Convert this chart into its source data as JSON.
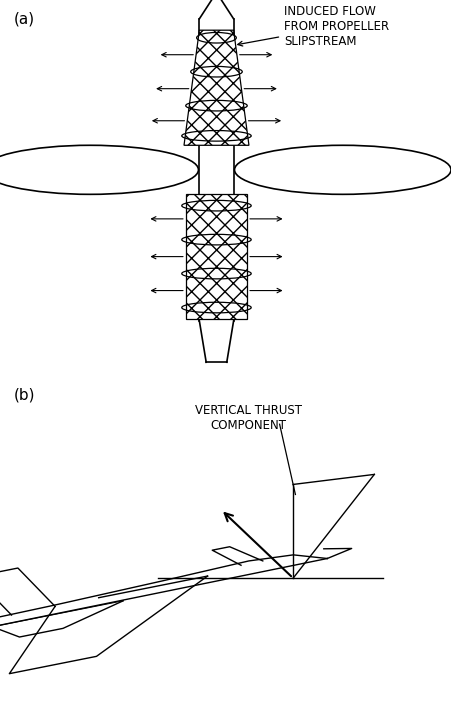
{
  "bg_color": "#ffffff",
  "line_color": "#000000",
  "label_a": "(a)",
  "label_b": "(b)",
  "annotation_a": "INDUCED FLOW\nFROM PROPELLER\nSLIPSTREAM",
  "annotation_b": "VERTICAL THRUST\nCOMPONENT",
  "fontsize_label": 11,
  "fontsize_annot": 8.5
}
